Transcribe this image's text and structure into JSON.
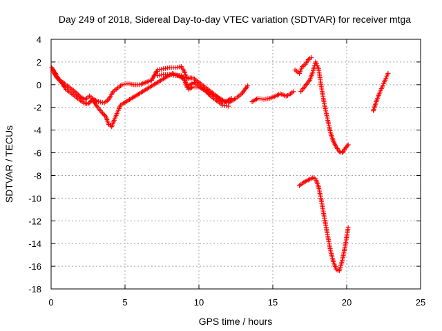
{
  "chart_data": {
    "type": "scatter",
    "title": "Day 249 of 2018, Sidereal Day-to-day VTEC variation (SDTVAR) for receiver mtga",
    "xlabel": "GPS time / hours",
    "ylabel": "SDTVAR / TECUs",
    "xlim": [
      0,
      25
    ],
    "ylim": [
      -18,
      4
    ],
    "x_ticks": [
      "0",
      "5",
      "10",
      "15",
      "20",
      "25"
    ],
    "y_ticks": [
      "4",
      "2",
      "0",
      "-2",
      "-4",
      "-6",
      "-8",
      "-10",
      "-12",
      "-14",
      "-16",
      "-18"
    ],
    "grid": true,
    "marker": "plus",
    "color": "#ff0000",
    "series": [
      {
        "x": [
          0.05,
          0.3,
          0.5,
          0.8,
          1.2,
          1.6,
          2.0,
          2.3,
          2.6,
          2.9,
          3.2,
          3.6,
          3.9,
          4.2,
          4.5,
          4.8,
          5.2,
          5.6,
          6.0,
          6.4,
          6.8,
          7.2,
          7.6,
          8.0,
          8.4,
          8.8,
          9.0,
          9.2,
          9.4,
          9.6,
          9.9,
          10.2,
          10.5,
          10.8,
          11.2,
          11.6,
          12.0,
          12.5,
          12.9,
          13.3
        ],
        "y": [
          1.5,
          1.0,
          0.5,
          0.2,
          -0.2,
          -0.6,
          -1.1,
          -1.3,
          -1.0,
          -1.3,
          -1.5,
          -1.6,
          -1.3,
          -0.6,
          -0.3,
          0.0,
          0.1,
          0.0,
          0.0,
          0.2,
          0.4,
          1.3,
          1.4,
          1.5,
          1.5,
          1.6,
          1.2,
          0.5,
          0.6,
          0.6,
          0.3,
          0.0,
          -0.3,
          -0.6,
          -1.0,
          -1.5,
          -1.6,
          -1.2,
          -0.8,
          -0.1
        ]
      },
      {
        "x": [
          0.1,
          0.4,
          0.7,
          1.0,
          1.4,
          1.8,
          2.2,
          2.5,
          2.8,
          3.1,
          3.4,
          3.7,
          3.9,
          4.1,
          4.3,
          4.5,
          4.7,
          8.2,
          8.6,
          9.0,
          9.3,
          9.6,
          10.0,
          10.4,
          10.8,
          11.2,
          11.6,
          12.0
        ],
        "y": [
          1.2,
          0.6,
          0.2,
          -0.4,
          -0.8,
          -1.2,
          -1.6,
          -1.7,
          -1.3,
          -1.9,
          -2.4,
          -2.8,
          -3.5,
          -3.7,
          -3.0,
          -2.4,
          -1.8,
          1.0,
          0.8,
          0.5,
          -0.4,
          -0.2,
          -0.2,
          -0.5,
          -1.0,
          -1.4,
          -1.8,
          -1.9
        ]
      },
      {
        "x": [
          7.2,
          7.6,
          8.0,
          8.4,
          8.8,
          9.0,
          9.2,
          9.4,
          9.7,
          10.0,
          10.3,
          10.6,
          11.0,
          11.4,
          11.8,
          12.2
        ],
        "y": [
          0.8,
          0.9,
          0.9,
          0.8,
          0.8,
          0.5,
          -0.2,
          0.0,
          0.2,
          -0.1,
          -0.4,
          -0.6,
          -0.9,
          -1.2,
          -1.5,
          -1.2
        ]
      },
      {
        "x": [
          13.6,
          14.0,
          14.4,
          14.8,
          15.2,
          15.5,
          15.9,
          16.1,
          16.4
        ],
        "y": [
          -1.5,
          -1.2,
          -1.3,
          -1.2,
          -1.0,
          -0.8,
          -1.0,
          -0.9,
          -0.6
        ]
      },
      {
        "x": [
          16.5,
          16.8,
          17.0,
          17.2,
          17.4,
          17.6
        ],
        "y": [
          1.3,
          1.0,
          1.6,
          1.8,
          2.2,
          2.4
        ]
      },
      {
        "x": [
          16.9,
          17.2,
          17.5,
          17.7,
          17.9,
          18.1,
          18.3,
          18.5,
          18.7,
          18.9,
          19.1,
          19.3,
          19.5,
          19.7,
          19.9,
          20.1
        ],
        "y": [
          -0.6,
          -0.1,
          0.4,
          1.1,
          2.0,
          1.4,
          -0.3,
          -1.8,
          -3.0,
          -4.2,
          -5.0,
          -5.5,
          -5.9,
          -6.0,
          -5.6,
          -5.3
        ]
      },
      {
        "x": [
          16.8,
          17.1,
          17.4,
          17.7,
          17.9,
          18.1,
          18.3,
          18.5,
          18.7,
          18.9,
          19.1,
          19.3,
          19.5,
          19.7,
          19.9,
          20.1
        ],
        "y": [
          -8.9,
          -8.6,
          -8.4,
          -8.2,
          -8.3,
          -9.0,
          -10.3,
          -11.8,
          -13.2,
          -14.6,
          -15.6,
          -16.3,
          -16.4,
          -15.5,
          -14.2,
          -12.6
        ]
      },
      {
        "x": [
          21.8,
          22.0,
          22.2,
          22.4,
          22.6,
          22.8
        ],
        "y": [
          -2.3,
          -1.5,
          -0.8,
          -0.2,
          0.4,
          1.0
        ]
      }
    ]
  }
}
